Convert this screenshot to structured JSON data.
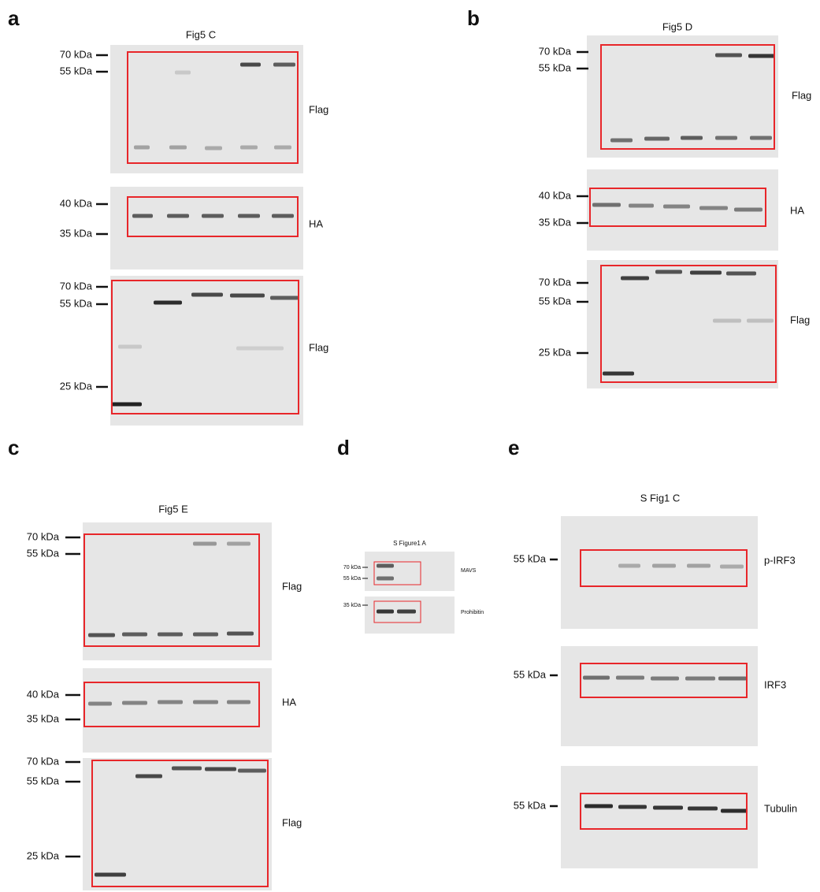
{
  "panels": [
    {
      "letter": "a",
      "title": "Fig5 C",
      "blots": [
        {
          "markers": [
            "70 kDa",
            "55 kDa"
          ],
          "label": "Flag"
        },
        {
          "markers": [
            "40 kDa",
            "35 kDa"
          ],
          "label": "HA"
        },
        {
          "markers": [
            "70 kDa",
            "55 kDa",
            "25 kDa"
          ],
          "label": "Flag"
        }
      ]
    },
    {
      "letter": "b",
      "title": "Fig5 D",
      "blots": [
        {
          "markers": [
            "70 kDa",
            "55 kDa"
          ],
          "label": "Flag"
        },
        {
          "markers": [
            "40 kDa",
            "35 kDa"
          ],
          "label": "HA"
        },
        {
          "markers": [
            "70 kDa",
            "55 kDa",
            "25 kDa"
          ],
          "label": "Flag"
        }
      ]
    },
    {
      "letter": "c",
      "title": "Fig5 E",
      "blots": [
        {
          "markers": [
            "70 kDa",
            "55 kDa"
          ],
          "label": "Flag"
        },
        {
          "markers": [
            "40 kDa",
            "35 kDa"
          ],
          "label": "HA"
        },
        {
          "markers": [
            "70 kDa",
            "55 kDa",
            "25 kDa"
          ],
          "label": "Flag"
        }
      ]
    },
    {
      "letter": "d",
      "title": "S Figure1 A",
      "blots": [
        {
          "markers": [
            "70 kDa",
            "55 kDa"
          ],
          "label": "MAVS"
        },
        {
          "markers": [
            "35 kDa"
          ],
          "label": "Prohibitin"
        }
      ]
    },
    {
      "letter": "e",
      "title": "S Fig1 C",
      "blots": [
        {
          "markers": [
            "55 kDa"
          ],
          "label": "p-IRF3"
        },
        {
          "markers": [
            "55 kDa"
          ],
          "label": "IRF3"
        },
        {
          "markers": [
            "55 kDa"
          ],
          "label": "Tubulin"
        }
      ]
    }
  ]
}
